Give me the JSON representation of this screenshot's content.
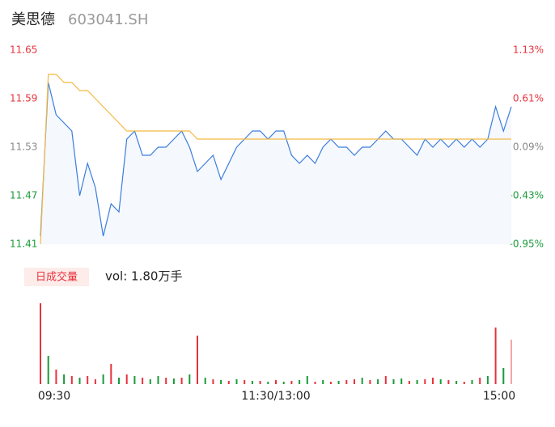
{
  "chart_data": {
    "type": "line",
    "title": "美思德",
    "subtitle": "603041.SH",
    "categories": [
      "09:30",
      null,
      null,
      null,
      null,
      null,
      null,
      null,
      null,
      null,
      null,
      null,
      null,
      null,
      null,
      null,
      null,
      null,
      null,
      null,
      null,
      null,
      null,
      null,
      null,
      null,
      null,
      null,
      null,
      null,
      "11:30/13:00",
      null,
      null,
      null,
      null,
      null,
      null,
      null,
      null,
      null,
      null,
      null,
      null,
      null,
      null,
      null,
      null,
      null,
      null,
      null,
      null,
      null,
      null,
      null,
      null,
      null,
      null,
      null,
      null,
      null,
      "15:00"
    ],
    "series": [
      {
        "color": "#3b7ddd",
        "values": [
          11.42,
          11.61,
          11.57,
          11.56,
          11.55,
          11.47,
          11.51,
          11.48,
          11.42,
          11.46,
          11.45,
          11.54,
          11.55,
          11.52,
          11.52,
          11.53,
          11.53,
          11.54,
          11.55,
          11.53,
          11.5,
          11.51,
          11.52,
          11.49,
          11.51,
          11.53,
          11.54,
          11.55,
          11.55,
          11.54,
          11.55,
          11.55,
          11.52,
          11.51,
          11.52,
          11.51,
          11.53,
          11.54,
          11.53,
          11.53,
          11.52,
          11.53,
          11.53,
          11.54,
          11.55,
          11.54,
          11.54,
          11.53,
          11.52,
          11.54,
          11.53,
          11.54,
          11.53,
          11.54,
          11.53,
          11.54,
          11.53,
          11.54,
          11.58,
          11.55,
          11.58
        ]
      },
      {
        "color": "#f5b942",
        "values": [
          11.41,
          11.62,
          11.62,
          11.61,
          11.61,
          11.6,
          11.6,
          11.59,
          11.58,
          11.57,
          11.56,
          11.55,
          11.55,
          11.55,
          11.55,
          11.55,
          11.55,
          11.55,
          11.55,
          11.55,
          11.54,
          11.54,
          11.54,
          11.54,
          11.54,
          11.54,
          11.54,
          11.54,
          11.54,
          11.54,
          11.54,
          11.54,
          11.54,
          11.54,
          11.54,
          11.54,
          11.54,
          11.54,
          11.54,
          11.54,
          11.54,
          11.54,
          11.54,
          11.54,
          11.54,
          11.54,
          11.54,
          11.54,
          11.54,
          11.54,
          11.54,
          11.54,
          11.54,
          11.54,
          11.54,
          11.54,
          11.54,
          11.54,
          11.54,
          11.54,
          11.54
        ]
      }
    ],
    "ylim": [
      11.41,
      11.65
    ],
    "yticks": [
      11.65,
      11.59,
      11.53,
      11.47,
      11.41
    ],
    "y2lim": [
      -0.95,
      1.13
    ],
    "y2ticks": [
      {
        "value": 1.13,
        "label": "1.13%"
      },
      {
        "value": 0.61,
        "label": "0.61%"
      },
      {
        "value": 0.09,
        "label": "0.09%"
      },
      {
        "value": -0.43,
        "label": "-0.43%"
      },
      {
        "value": -0.95,
        "label": "-0.95%"
      }
    ],
    "tick_colors": [
      "#e8323c",
      "#e8323c",
      "#888888",
      "#1a9a3a",
      "#1a9a3a"
    ],
    "volume_title": "日成交量",
    "volume_label": "vol: 1.80万手",
    "volume": {
      "values": [
        100,
        35,
        18,
        12,
        10,
        8,
        10,
        6,
        12,
        25,
        8,
        12,
        10,
        8,
        6,
        10,
        8,
        7,
        8,
        12,
        60,
        8,
        6,
        5,
        4,
        6,
        5,
        4,
        4,
        3,
        5,
        3,
        4,
        5,
        10,
        3,
        5,
        3,
        4,
        5,
        6,
        8,
        5,
        6,
        10,
        6,
        7,
        4,
        5,
        6,
        8,
        6,
        5,
        4,
        3,
        5,
        8,
        10,
        70,
        20,
        55
      ],
      "colors": [
        "#e8323c",
        "#1a9a3a",
        "#e8323c",
        "#1a9a3a",
        "#e8323c",
        "#1a9a3a",
        "#e8323c",
        "#e8323c",
        "#1a9a3a",
        "#e8323c",
        "#1a9a3a",
        "#e8323c",
        "#1a9a3a",
        "#e8323c",
        "#1a9a3a",
        "#1a9a3a",
        "#e8323c",
        "#1a9a3a",
        "#e8323c",
        "#1a9a3a",
        "#e8323c",
        "#1a9a3a",
        "#e8323c",
        "#1a9a3a",
        "#e8323c",
        "#1a9a3a",
        "#e8323c",
        "#1a9a3a",
        "#e8323c",
        "#1a9a3a",
        "#e8323c",
        "#1a9a3a",
        "#e8323c",
        "#1a9a3a",
        "#1a9a3a",
        "#e8323c",
        "#1a9a3a",
        "#e8323c",
        "#1a9a3a",
        "#e8323c",
        "#e8323c",
        "#1a9a3a",
        "#e8323c",
        "#1a9a3a",
        "#e8323c",
        "#1a9a3a",
        "#1a9a3a",
        "#e8323c",
        "#1a9a3a",
        "#e8323c",
        "#e8323c",
        "#1a9a3a",
        "#e8323c",
        "#1a9a3a",
        "#e8323c",
        "#1a9a3a",
        "#e8323c",
        "#1a9a3a",
        "#e8323c",
        "#1a9a3a",
        "#f4a6a6"
      ]
    }
  }
}
